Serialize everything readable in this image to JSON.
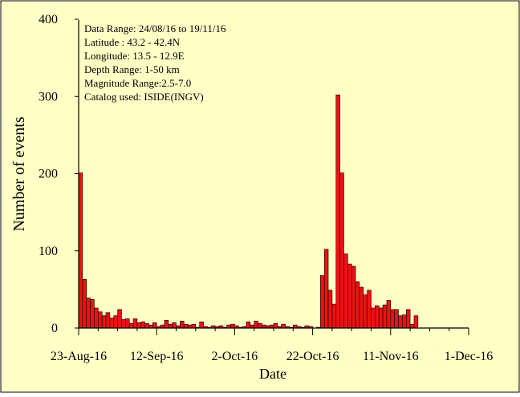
{
  "chart_data": {
    "type": "bar",
    "ylabel": "Number of events",
    "xlabel": "Date",
    "ylim": [
      0,
      400
    ],
    "y_ticks": [
      0,
      100,
      200,
      300,
      400
    ],
    "x_ticks": [
      "23-Aug-16",
      "12-Sep-16",
      "2-Oct-16",
      "22-Oct-16",
      "11-Nov-16",
      "1-Dec-16"
    ],
    "x_domain_days_from_23_aug": [
      0,
      100
    ],
    "info_lines": [
      "Data Range: 24/08/16 to 19/11/16",
      "Latitude : 43.2 - 42.4N",
      "Longitude: 13.5 - 12.9E",
      "Depth Range: 1-50 km",
      "Magnitude Range:2.5-7.0",
      "Catalog used: ISIDE(INGV)"
    ],
    "bar_color": "#ee1111",
    "background_color": "#ffffc6",
    "bin_width_days": 1,
    "series": [
      {
        "start_date": "24-Aug-16",
        "values": [
          201,
          63,
          39,
          37,
          26,
          21,
          16,
          20,
          13,
          16,
          24,
          11,
          12,
          6,
          12,
          7,
          8,
          6,
          4,
          7,
          2,
          4,
          10,
          5,
          7,
          3,
          9,
          5,
          4,
          5,
          1,
          8,
          2,
          1,
          3,
          2,
          3,
          1,
          4,
          5,
          3,
          1,
          2,
          8,
          4,
          9,
          6,
          4,
          3,
          4,
          6,
          2,
          5,
          2,
          1,
          4,
          2,
          1,
          3,
          2,
          0,
          1,
          68,
          102,
          49,
          31,
          302,
          201,
          96,
          83,
          80,
          60,
          53,
          43,
          49,
          26,
          29,
          26,
          30,
          36,
          24,
          24,
          16,
          17,
          24,
          5,
          16
        ]
      }
    ]
  }
}
